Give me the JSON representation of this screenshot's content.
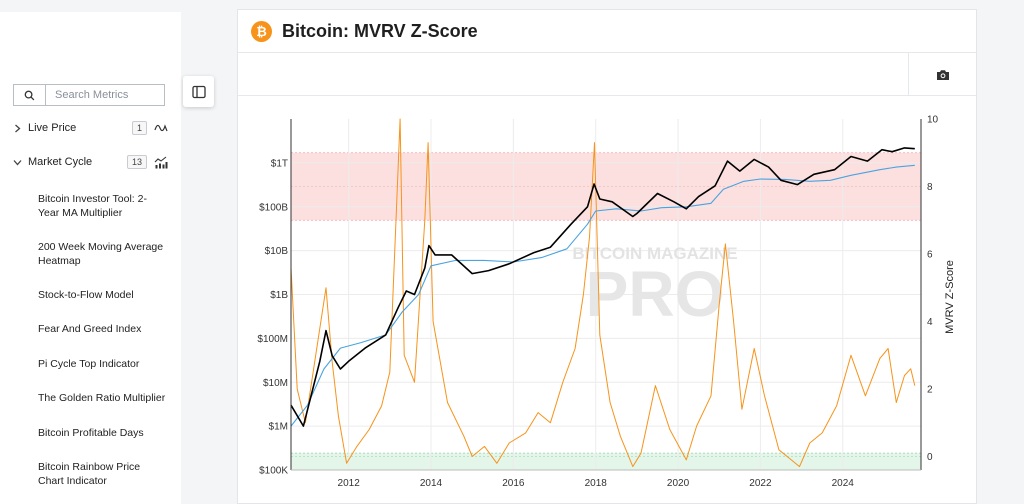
{
  "sidebar": {
    "search_placeholder": "Search Metrics",
    "categories": [
      {
        "label": "Live Price",
        "count": "1",
        "expanded": false
      },
      {
        "label": "Market Cycle",
        "count": "13",
        "expanded": true
      }
    ],
    "metrics": [
      "Bitcoin Investor Tool: 2-Year MA Multiplier",
      "200 Week Moving Average Heatmap",
      "Stock-to-Flow Model",
      "Fear And Greed Index",
      "Pi Cycle Top Indicator",
      "The Golden Ratio Multiplier",
      "Bitcoin Profitable Days",
      "Bitcoin Rainbow Price Chart Indicator"
    ]
  },
  "header": {
    "title": "Bitcoin: MVRV Z-Score"
  },
  "colors": {
    "price": "#000000",
    "realized": "#4aa3df",
    "zscore": "#f7931a",
    "top_zone": "#fbdada",
    "bottom_zone": "#dff3e6",
    "accent": "#f7931a"
  },
  "icons": {
    "search": "search-icon",
    "camera": "camera-icon",
    "sidebar_toggle": "sidebar-toggle-icon",
    "bitcoin": "bitcoin-icon"
  },
  "watermark": {
    "line1": "BITCOIN MAGAZINE",
    "line2": "PRO"
  },
  "chart_data": {
    "type": "line",
    "title": "Bitcoin: MVRV Z-Score",
    "xlabel": "",
    "y2label": "MVRV Z-Score",
    "x_range": [
      2010.6,
      2025.9
    ],
    "x_ticks": [
      "2012",
      "2014",
      "2016",
      "2018",
      "2020",
      "2022",
      "2024"
    ],
    "y_left_scale": "log",
    "y_left_range": [
      100000,
      10000000000000
    ],
    "y_left_ticks": [
      "$100K",
      "$1M",
      "$10M",
      "$100M",
      "$1B",
      "$10B",
      "$100B",
      "$1T"
    ],
    "y_right_range": [
      -0.4,
      10
    ],
    "y_right_ticks": [
      "0",
      "2",
      "4",
      "6",
      "8",
      "10"
    ],
    "zones": [
      {
        "name": "top",
        "from": 7,
        "to": 9
      },
      {
        "name": "bottom",
        "from": -0.4,
        "to": 0.1
      }
    ],
    "series": [
      {
        "axis": "left",
        "color": "#000000",
        "points": [
          [
            2010.6,
            3000000
          ],
          [
            2010.9,
            1000000
          ],
          [
            2011.3,
            30000000
          ],
          [
            2011.45,
            150000000
          ],
          [
            2011.6,
            40000000
          ],
          [
            2011.8,
            20000000
          ],
          [
            2012.0,
            30000000
          ],
          [
            2012.4,
            60000000
          ],
          [
            2012.9,
            120000000
          ],
          [
            2013.2,
            500000000
          ],
          [
            2013.4,
            1200000000
          ],
          [
            2013.6,
            1000000000
          ],
          [
            2013.85,
            4000000000
          ],
          [
            2013.95,
            13000000000
          ],
          [
            2014.1,
            8000000000
          ],
          [
            2014.5,
            8000000000
          ],
          [
            2015.0,
            3000000000
          ],
          [
            2015.4,
            3500000000
          ],
          [
            2015.9,
            5000000000
          ],
          [
            2016.5,
            9000000000
          ],
          [
            2016.9,
            12000000000
          ],
          [
            2017.4,
            40000000000
          ],
          [
            2017.8,
            100000000000
          ],
          [
            2017.96,
            330000000000
          ],
          [
            2018.1,
            150000000000
          ],
          [
            2018.4,
            130000000000
          ],
          [
            2018.9,
            60000000000
          ],
          [
            2019.0,
            70000000000
          ],
          [
            2019.5,
            200000000000
          ],
          [
            2019.9,
            130000000000
          ],
          [
            2020.2,
            90000000000
          ],
          [
            2020.5,
            170000000000
          ],
          [
            2020.9,
            300000000000
          ],
          [
            2021.2,
            1100000000000
          ],
          [
            2021.5,
            650000000000
          ],
          [
            2021.85,
            1200000000000
          ],
          [
            2022.2,
            800000000000
          ],
          [
            2022.5,
            400000000000
          ],
          [
            2022.9,
            320000000000
          ],
          [
            2023.3,
            550000000000
          ],
          [
            2023.8,
            700000000000
          ],
          [
            2024.2,
            1400000000000
          ],
          [
            2024.6,
            1100000000000
          ],
          [
            2024.95,
            2000000000000
          ],
          [
            2025.2,
            1800000000000
          ],
          [
            2025.5,
            2200000000000
          ],
          [
            2025.75,
            2100000000000
          ]
        ]
      },
      {
        "axis": "left",
        "color": "#4aa3df",
        "points": [
          [
            2010.6,
            1000000
          ],
          [
            2011.0,
            3000000
          ],
          [
            2011.4,
            20000000
          ],
          [
            2011.8,
            60000000
          ],
          [
            2012.3,
            80000000
          ],
          [
            2012.9,
            120000000
          ],
          [
            2013.3,
            400000000
          ],
          [
            2013.7,
            1000000000
          ],
          [
            2014.0,
            4500000000
          ],
          [
            2014.6,
            6000000000
          ],
          [
            2015.3,
            6000000000
          ],
          [
            2016.0,
            5500000000
          ],
          [
            2016.7,
            7000000000
          ],
          [
            2017.3,
            11000000000
          ],
          [
            2017.8,
            40000000000
          ],
          [
            2018.0,
            80000000000
          ],
          [
            2018.5,
            90000000000
          ],
          [
            2019.1,
            80000000000
          ],
          [
            2019.6,
            95000000000
          ],
          [
            2020.2,
            100000000000
          ],
          [
            2020.8,
            120000000000
          ],
          [
            2021.1,
            250000000000
          ],
          [
            2021.6,
            380000000000
          ],
          [
            2022.0,
            430000000000
          ],
          [
            2022.6,
            420000000000
          ],
          [
            2023.2,
            380000000000
          ],
          [
            2023.7,
            400000000000
          ],
          [
            2024.2,
            520000000000
          ],
          [
            2024.9,
            700000000000
          ],
          [
            2025.3,
            800000000000
          ],
          [
            2025.75,
            880000000000
          ]
        ]
      },
      {
        "axis": "right",
        "color": "#f7931a",
        "points": [
          [
            2010.6,
            5.6
          ],
          [
            2010.75,
            2.0
          ],
          [
            2010.95,
            1.0
          ],
          [
            2011.2,
            3.0
          ],
          [
            2011.45,
            5.0
          ],
          [
            2011.6,
            2.8
          ],
          [
            2011.75,
            1.2
          ],
          [
            2011.95,
            -0.2
          ],
          [
            2012.2,
            0.3
          ],
          [
            2012.5,
            0.8
          ],
          [
            2012.8,
            1.5
          ],
          [
            2013.0,
            2.5
          ],
          [
            2013.15,
            7.0
          ],
          [
            2013.25,
            10.0
          ],
          [
            2013.35,
            3.0
          ],
          [
            2013.6,
            2.2
          ],
          [
            2013.85,
            7.0
          ],
          [
            2013.93,
            9.3
          ],
          [
            2014.05,
            4.0
          ],
          [
            2014.4,
            1.6
          ],
          [
            2014.8,
            0.6
          ],
          [
            2015.0,
            0.0
          ],
          [
            2015.3,
            0.3
          ],
          [
            2015.6,
            -0.2
          ],
          [
            2015.9,
            0.4
          ],
          [
            2016.3,
            0.7
          ],
          [
            2016.6,
            1.3
          ],
          [
            2016.9,
            1.0
          ],
          [
            2017.2,
            2.2
          ],
          [
            2017.5,
            3.2
          ],
          [
            2017.7,
            4.8
          ],
          [
            2017.85,
            6.5
          ],
          [
            2017.97,
            9.3
          ],
          [
            2018.1,
            3.6
          ],
          [
            2018.35,
            1.6
          ],
          [
            2018.6,
            0.6
          ],
          [
            2018.9,
            -0.3
          ],
          [
            2019.1,
            0.1
          ],
          [
            2019.45,
            2.1
          ],
          [
            2019.8,
            0.8
          ],
          [
            2020.2,
            -0.1
          ],
          [
            2020.45,
            0.9
          ],
          [
            2020.8,
            1.8
          ],
          [
            2021.0,
            4.5
          ],
          [
            2021.15,
            6.3
          ],
          [
            2021.35,
            4.0
          ],
          [
            2021.55,
            1.4
          ],
          [
            2021.85,
            3.2
          ],
          [
            2022.1,
            1.8
          ],
          [
            2022.45,
            0.2
          ],
          [
            2022.75,
            -0.1
          ],
          [
            2022.95,
            -0.3
          ],
          [
            2023.2,
            0.4
          ],
          [
            2023.5,
            0.7
          ],
          [
            2023.85,
            1.5
          ],
          [
            2024.2,
            3.0
          ],
          [
            2024.55,
            1.8
          ],
          [
            2024.9,
            2.9
          ],
          [
            2025.1,
            3.2
          ],
          [
            2025.3,
            1.6
          ],
          [
            2025.5,
            2.4
          ],
          [
            2025.65,
            2.6
          ],
          [
            2025.75,
            2.1
          ]
        ]
      }
    ]
  }
}
